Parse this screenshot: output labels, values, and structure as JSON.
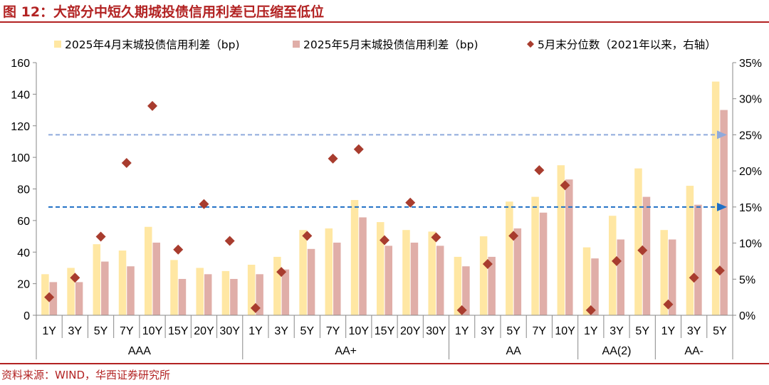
{
  "figure": {
    "title": "图 12：大部分中短久期城投债信用利差已压缩至低位",
    "source": "资料来源：WIND，华西证券研究所"
  },
  "colors": {
    "april": "#FFE7A3",
    "may": "#E0AEA8",
    "percentile": "#A83C2E",
    "accent_red": "#B22222",
    "dash_light": "#8FAADC",
    "dash_dark": "#1F6FC5"
  },
  "chart_data": {
    "type": "bar",
    "legend": {
      "placement": "top",
      "series": [
        "2025年4月末城投债信用利差（bp)",
        "2025年5月末城投债信用利差（bp)",
        "5月末分位数（2021年以来，右轴）"
      ]
    },
    "groups": [
      {
        "name": "AAA",
        "size": 8
      },
      {
        "name": "AA+",
        "size": 8
      },
      {
        "name": "AA",
        "size": 5
      },
      {
        "name": "AA(2)",
        "size": 3
      },
      {
        "name": "AA-",
        "size": 3
      }
    ],
    "categories": [
      "1Y",
      "3Y",
      "5Y",
      "7Y",
      "10Y",
      "15Y",
      "20Y",
      "30Y",
      "1Y",
      "3Y",
      "5Y",
      "7Y",
      "10Y",
      "15Y",
      "20Y",
      "30Y",
      "1Y",
      "3Y",
      "5Y",
      "7Y",
      "10Y",
      "1Y",
      "3Y",
      "5Y",
      "1Y",
      "3Y",
      "5Y"
    ],
    "series": [
      {
        "name": "2025年4月末城投债信用利差（bp)",
        "type": "bar",
        "axis": "left",
        "values": [
          26,
          30,
          45,
          41,
          56,
          35,
          30,
          28,
          32,
          37,
          54,
          55,
          73,
          59,
          54,
          53,
          37,
          50,
          72,
          75,
          95,
          43,
          63,
          93,
          54,
          82,
          148
        ]
      },
      {
        "name": "2025年5月末城投债信用利差（bp)",
        "type": "bar",
        "axis": "left",
        "values": [
          21,
          21,
          34,
          31,
          46,
          23,
          26,
          23,
          26,
          29,
          42,
          46,
          62,
          44,
          46,
          44,
          31,
          37,
          55,
          65,
          86,
          36,
          48,
          75,
          48,
          70,
          130
        ]
      },
      {
        "name": "5月末分位数（2021年以来，右轴）",
        "type": "scatter",
        "axis": "right",
        "values": [
          2.5,
          5.2,
          10.9,
          21.1,
          29.0,
          9.1,
          15.4,
          10.3,
          1.0,
          6.0,
          11.0,
          21.7,
          23.0,
          10.4,
          15.6,
          10.8,
          0.7,
          7.1,
          11.0,
          20.1,
          18.0,
          0.7,
          7.5,
          9.0,
          1.5,
          5.2,
          6.2
        ]
      }
    ],
    "reference_lines": [
      {
        "axis": "right",
        "value": 25,
        "style": "dashed",
        "color": "#8FAADC",
        "arrow": "right"
      },
      {
        "axis": "right",
        "value": 15,
        "style": "dashed",
        "color": "#1F6FC5",
        "arrow": "right"
      }
    ],
    "y_left": {
      "min": 0,
      "max": 160,
      "ticks": [
        0,
        20,
        40,
        60,
        80,
        100,
        120,
        140,
        160
      ]
    },
    "y_right": {
      "min": 0,
      "max": 35,
      "ticks": [
        "0%",
        "5%",
        "10%",
        "15%",
        "20%",
        "25%",
        "30%",
        "35%"
      ]
    },
    "grid": false
  }
}
